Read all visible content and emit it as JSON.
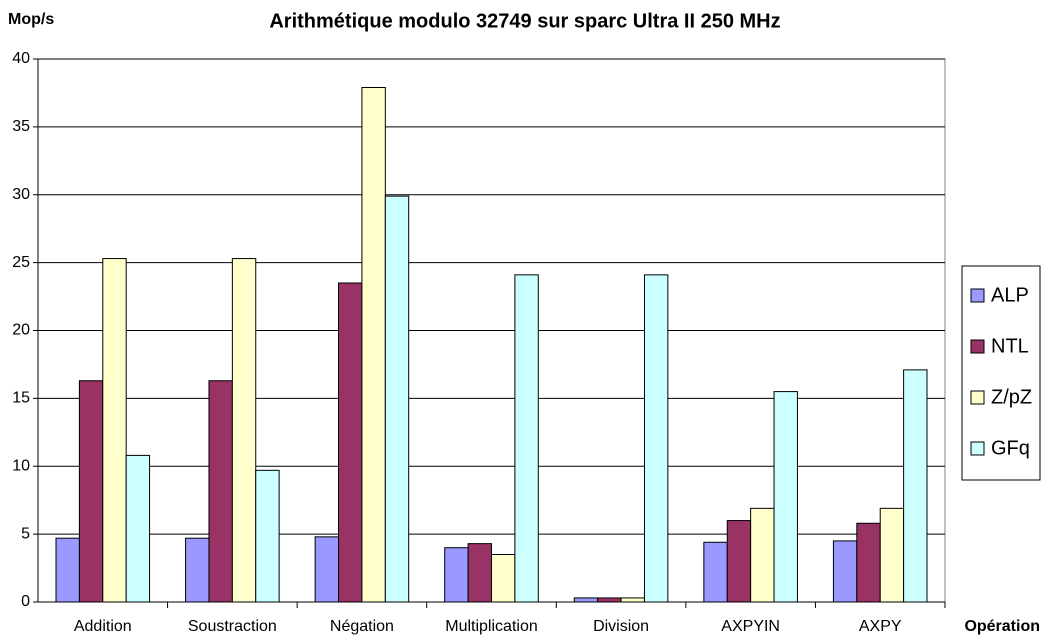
{
  "chart_data": {
    "type": "bar",
    "title": "Arithmétique modulo 32749 sur sparc Ultra II 250 MHz",
    "y_label": "Mop/s",
    "x_label": "Opération",
    "categories": [
      "Addition",
      "Soustraction",
      "Négation",
      "Multiplication",
      "Division",
      "AXPYIN",
      "AXPY"
    ],
    "series": [
      {
        "name": "ALP",
        "color": "#9999ff",
        "values": [
          4.7,
          4.7,
          4.8,
          4.0,
          0.3,
          4.4,
          4.5
        ]
      },
      {
        "name": "NTL",
        "color": "#993366",
        "values": [
          16.3,
          16.3,
          23.5,
          4.3,
          0.3,
          6.0,
          5.8
        ]
      },
      {
        "name": "Z/pZ",
        "color": "#ffffcc",
        "values": [
          25.3,
          25.3,
          37.9,
          3.5,
          0.3,
          6.9,
          6.9
        ]
      },
      {
        "name": "GFq",
        "color": "#ccffff",
        "values": [
          10.8,
          9.7,
          29.9,
          24.1,
          24.1,
          15.5,
          17.1
        ]
      }
    ],
    "ylim": [
      0,
      40
    ],
    "yticks": [
      0,
      5,
      10,
      15,
      20,
      25,
      30,
      35,
      40
    ],
    "grid": true,
    "legend": "right"
  }
}
